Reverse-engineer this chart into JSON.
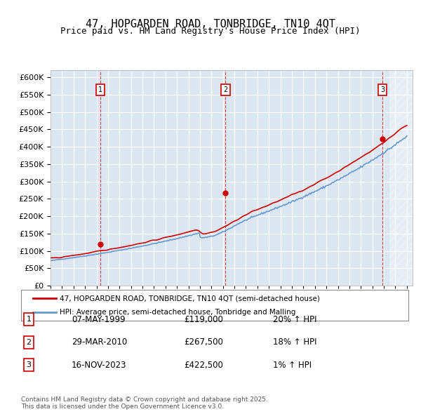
{
  "title": "47, HOPGARDEN ROAD, TONBRIDGE, TN10 4QT",
  "subtitle": "Price paid vs. HM Land Registry's House Price Index (HPI)",
  "ylabel": "",
  "ylim": [
    0,
    620000
  ],
  "yticks": [
    0,
    50000,
    100000,
    150000,
    200000,
    250000,
    300000,
    350000,
    400000,
    450000,
    500000,
    550000,
    600000
  ],
  "xlim_start": 1995.0,
  "xlim_end": 2026.5,
  "transactions": [
    {
      "num": 1,
      "date": "07-MAY-1999",
      "price": 119000,
      "year": 1999.35,
      "pct": "20%",
      "dir": "↑"
    },
    {
      "num": 2,
      "date": "29-MAR-2010",
      "price": 267500,
      "year": 2010.23,
      "pct": "18%",
      "dir": "↑"
    },
    {
      "num": 3,
      "date": "16-NOV-2023",
      "price": 422500,
      "year": 2023.87,
      "pct": "1%",
      "dir": "↑"
    }
  ],
  "legend_line1": "47, HOPGARDEN ROAD, TONBRIDGE, TN10 4QT (semi-detached house)",
  "legend_line2": "HPI: Average price, semi-detached house, Tonbridge and Malling",
  "footnote": "Contains HM Land Registry data © Crown copyright and database right 2025.\nThis data is licensed under the Open Government Licence v3.0.",
  "red_color": "#cc0000",
  "blue_color": "#6699cc",
  "bg_color": "#dce6f1",
  "hatch_color": "#cccccc",
  "grid_color": "#ffffff",
  "table_rows": [
    {
      "num": 1,
      "date": "07-MAY-1999",
      "price": "£119,000",
      "pct": "20% ↑ HPI"
    },
    {
      "num": 2,
      "date": "29-MAR-2010",
      "price": "£267,500",
      "pct": "18% ↑ HPI"
    },
    {
      "num": 3,
      "date": "16-NOV-2023",
      "price": "£422,500",
      "pct": "1% ↑ HPI"
    }
  ]
}
